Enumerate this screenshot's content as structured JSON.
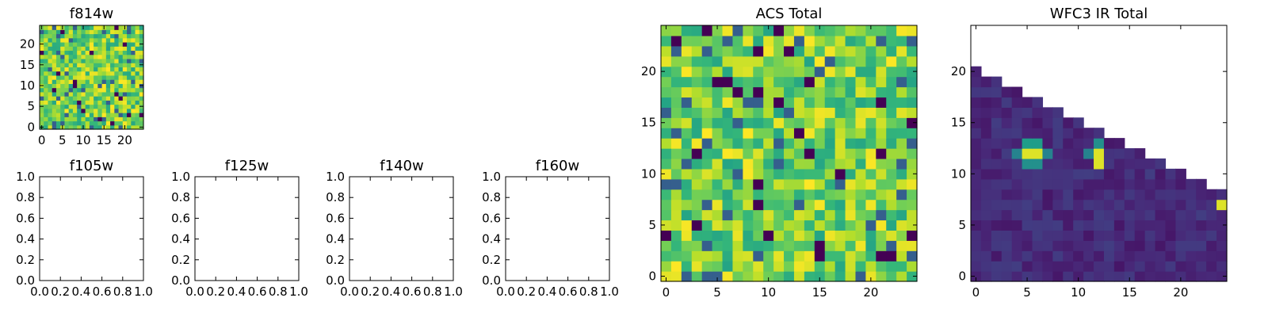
{
  "chart_data": [
    {
      "type": "heatmap",
      "title": "f814w",
      "grid": 25,
      "xticks": [
        0,
        5,
        10,
        15,
        20
      ],
      "yticks": [
        0,
        5,
        10,
        15,
        20
      ],
      "colormap": "viridis",
      "pattern": "noise",
      "seed": 11
    },
    {
      "type": "empty",
      "title": "f105w",
      "xticks": [
        "0.0",
        "0.2",
        "0.4",
        "0.6",
        "0.8",
        "1.0"
      ],
      "yticks": [
        "0.0",
        "0.2",
        "0.4",
        "0.6",
        "0.8",
        "1.0"
      ]
    },
    {
      "type": "empty",
      "title": "f125w",
      "xticks": [
        "0.0",
        "0.2",
        "0.4",
        "0.6",
        "0.8",
        "1.0"
      ],
      "yticks": [
        "0.0",
        "0.2",
        "0.4",
        "0.6",
        "0.8",
        "1.0"
      ]
    },
    {
      "type": "empty",
      "title": "f140w",
      "xticks": [
        "0.0",
        "0.2",
        "0.4",
        "0.6",
        "0.8",
        "1.0"
      ],
      "yticks": [
        "0.0",
        "0.2",
        "0.4",
        "0.6",
        "0.8",
        "1.0"
      ]
    },
    {
      "type": "empty",
      "title": "f160w",
      "xticks": [
        "0.0",
        "0.2",
        "0.4",
        "0.6",
        "0.8",
        "1.0"
      ],
      "yticks": [
        "0.0",
        "0.2",
        "0.4",
        "0.6",
        "0.8",
        "1.0"
      ]
    },
    {
      "type": "heatmap",
      "title": "ACS Total",
      "grid": 25,
      "xticks": [
        0,
        5,
        10,
        15,
        20
      ],
      "yticks": [
        0,
        5,
        10,
        15,
        20
      ],
      "colormap": "viridis",
      "pattern": "noise",
      "seed": 7
    },
    {
      "type": "heatmap",
      "title": "WFC3 IR Total",
      "grid": 25,
      "xticks": [
        0,
        5,
        10,
        15,
        20
      ],
      "yticks": [
        0,
        5,
        10,
        15,
        20
      ],
      "colormap": "viridis",
      "pattern": "triangle",
      "seed": 3,
      "hotspots": [
        {
          "x": 5,
          "y": 12,
          "v": 0.95
        },
        {
          "x": 6,
          "y": 12,
          "v": 0.95
        },
        {
          "x": 5,
          "y": 11,
          "v": 0.5
        },
        {
          "x": 6,
          "y": 11,
          "v": 0.5
        },
        {
          "x": 5,
          "y": 13,
          "v": 0.55
        },
        {
          "x": 6,
          "y": 13,
          "v": 0.55
        },
        {
          "x": 4,
          "y": 12,
          "v": 0.45
        },
        {
          "x": 7,
          "y": 12,
          "v": 0.45
        },
        {
          "x": 12,
          "y": 12,
          "v": 0.95
        },
        {
          "x": 12,
          "y": 11,
          "v": 0.95
        },
        {
          "x": 12,
          "y": 13,
          "v": 0.5
        },
        {
          "x": 11,
          "y": 12,
          "v": 0.45
        },
        {
          "x": 24,
          "y": 7,
          "v": 0.95
        }
      ]
    }
  ]
}
